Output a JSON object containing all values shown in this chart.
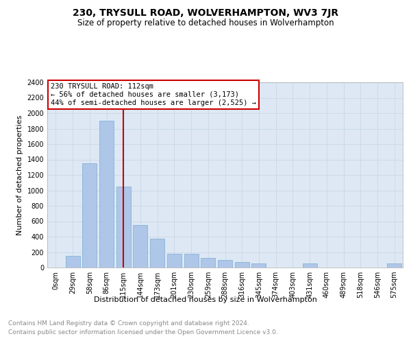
{
  "title": "230, TRYSULL ROAD, WOLVERHAMPTON, WV3 7JR",
  "subtitle": "Size of property relative to detached houses in Wolverhampton",
  "xlabel": "Distribution of detached houses by size in Wolverhampton",
  "ylabel": "Number of detached properties",
  "footer_line1": "Contains HM Land Registry data © Crown copyright and database right 2024.",
  "footer_line2": "Contains public sector information licensed under the Open Government Licence v3.0.",
  "bar_labels": [
    "0sqm",
    "29sqm",
    "58sqm",
    "86sqm",
    "115sqm",
    "144sqm",
    "173sqm",
    "201sqm",
    "230sqm",
    "259sqm",
    "288sqm",
    "316sqm",
    "345sqm",
    "374sqm",
    "403sqm",
    "431sqm",
    "460sqm",
    "489sqm",
    "518sqm",
    "546sqm",
    "575sqm"
  ],
  "bar_values": [
    0,
    150,
    1350,
    1900,
    1050,
    550,
    375,
    175,
    175,
    125,
    100,
    75,
    50,
    0,
    0,
    50,
    0,
    0,
    0,
    0,
    50
  ],
  "bar_color": "#aec6e8",
  "bar_edge_color": "#7aadd4",
  "annotation_text": "230 TRYSULL ROAD: 112sqm\n← 56% of detached houses are smaller (3,173)\n44% of semi-detached houses are larger (2,525) →",
  "annotation_box_color": "white",
  "annotation_box_edge": "#cc0000",
  "vline_x_index": 4,
  "vline_color": "#cc0000",
  "ylim": [
    0,
    2400
  ],
  "yticks": [
    0,
    200,
    400,
    600,
    800,
    1000,
    1200,
    1400,
    1600,
    1800,
    2000,
    2200,
    2400
  ],
  "grid_color": "#ccd9e8",
  "bg_color": "#dde8f4",
  "title_fontsize": 10,
  "subtitle_fontsize": 8.5,
  "axis_label_fontsize": 8,
  "tick_fontsize": 7,
  "footer_fontsize": 6.5
}
